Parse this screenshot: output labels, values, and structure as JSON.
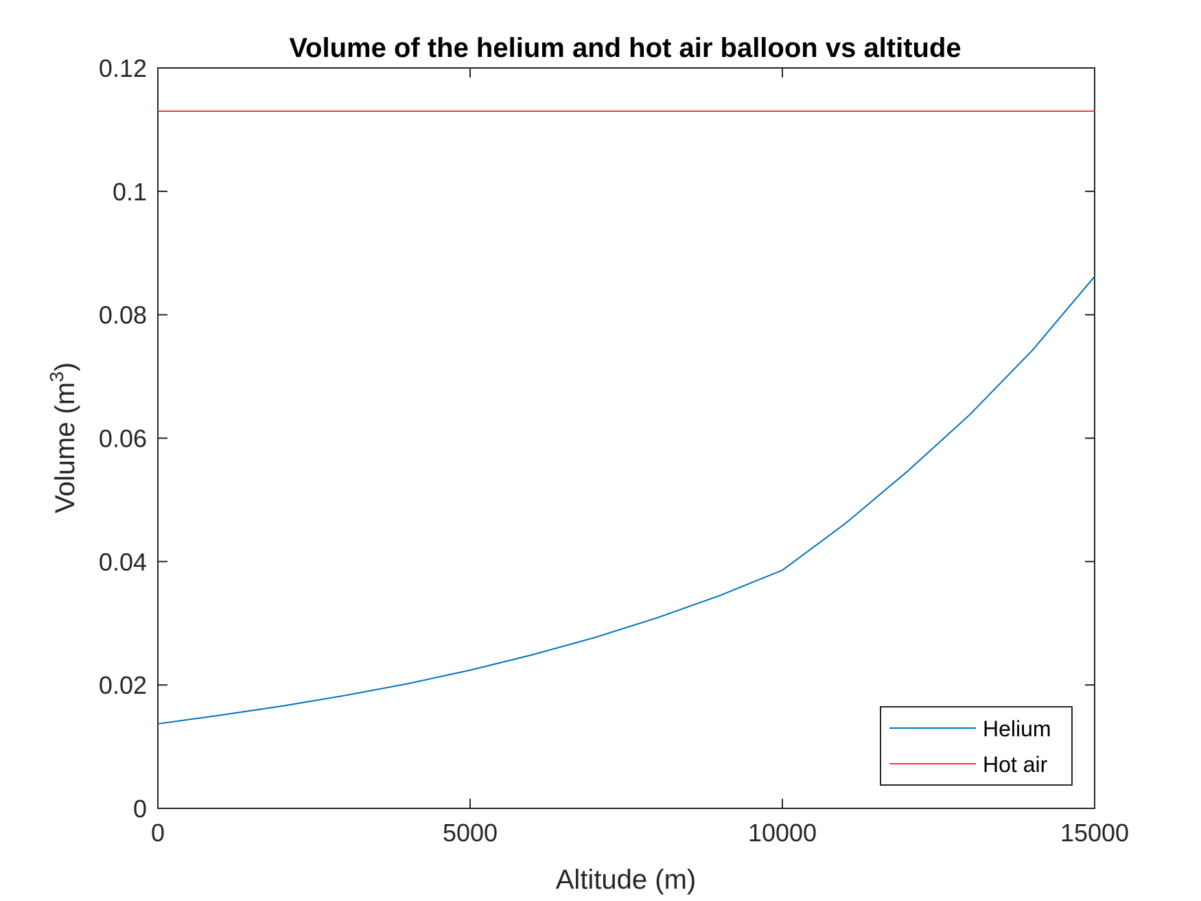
{
  "chart_data": {
    "type": "line",
    "title": "Volume of the helium and hot air balloon vs altitude",
    "xlabel": "Altitude (m)",
    "ylabel": {
      "text": "Volume (m",
      "superscript": "3",
      "suffix": ")"
    },
    "xlim": [
      0,
      15000
    ],
    "ylim": [
      0,
      0.12
    ],
    "xticks": [
      0,
      5000,
      10000,
      15000
    ],
    "xtick_labels": [
      "0",
      "5000",
      "10000",
      "15000"
    ],
    "yticks": [
      0,
      0.02,
      0.04,
      0.06,
      0.08,
      0.1,
      0.12
    ],
    "ytick_labels": [
      "0",
      "0.02",
      "0.04",
      "0.06",
      "0.08",
      "0.1",
      "0.12"
    ],
    "grid": false,
    "legend_position": "bottom-right",
    "series": [
      {
        "name": "Helium",
        "color": "#0072BD",
        "x": [
          0,
          1000,
          2000,
          3000,
          4000,
          5000,
          6000,
          7000,
          8000,
          9000,
          10000,
          11000,
          12000,
          13000,
          14000,
          15000
        ],
        "y": [
          0.0137,
          0.0151,
          0.0166,
          0.0183,
          0.0202,
          0.0224,
          0.0249,
          0.0277,
          0.0309,
          0.0345,
          0.0386,
          0.0461,
          0.0546,
          0.0638,
          0.0742,
          0.0862
        ]
      },
      {
        "name": "Hot air",
        "color": "#FF3333",
        "x": [
          0,
          15000
        ],
        "y": [
          0.113,
          0.113
        ]
      }
    ]
  }
}
